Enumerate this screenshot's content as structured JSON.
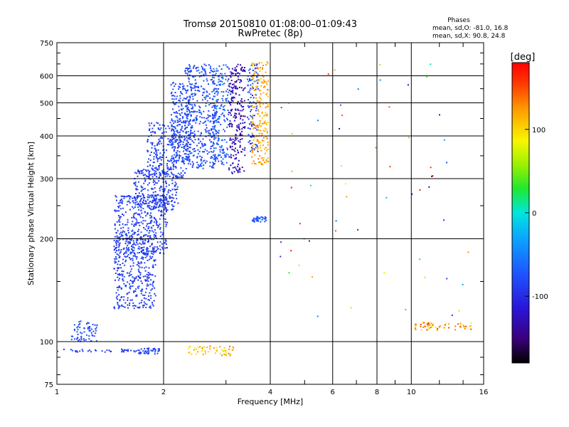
{
  "chart_data": {
    "type": "scatter",
    "title": "Tromsø 20150810 01:08:00–01:09:43",
    "subtitle": "RwPretec (8p)",
    "xlabel": "Frequency [MHz]",
    "ylabel": "Stationary phase Virtual Height [km]",
    "x_scale": "log",
    "y_scale": "log",
    "xlim": [
      1,
      16
    ],
    "ylim": [
      75,
      750
    ],
    "x_ticks": [
      "1",
      "2",
      "4",
      "6",
      "8",
      "10",
      "16"
    ],
    "y_ticks": [
      "75",
      "100",
      "200",
      "300",
      "400",
      "500",
      "600",
      "750"
    ],
    "grid": true,
    "stats": {
      "heading": "Phases",
      "line_o": "mean, sd,O:  -81.0, 16.8",
      "line_x": "mean, sd,X:  90.8, 24.8"
    },
    "colorbar": {
      "unit": "[deg]",
      "range": [
        -180,
        180
      ],
      "ticks": [
        "100",
        "0",
        "-100"
      ]
    },
    "clusters": [
      {
        "x": [
          1.0,
          1.7
        ],
        "y": [
          93,
          95
        ],
        "phase": [
          -95,
          -80
        ]
      },
      {
        "x": [
          1.1,
          1.3
        ],
        "y": [
          100,
          115
        ],
        "phase": [
          -90,
          -70
        ]
      },
      {
        "x": [
          1.7,
          1.95
        ],
        "y": [
          92,
          96
        ],
        "phase": [
          -95,
          -80
        ]
      },
      {
        "x": [
          2.35,
          3.15
        ],
        "y": [
          91,
          97
        ],
        "phase": [
          80,
          140
        ]
      },
      {
        "x": [
          1.45,
          1.9
        ],
        "y": [
          125,
          210
        ],
        "phase": [
          -100,
          -75
        ]
      },
      {
        "x": [
          1.45,
          2.05
        ],
        "y": [
          180,
          270
        ],
        "phase": [
          -100,
          -75
        ]
      },
      {
        "x": [
          1.65,
          2.2
        ],
        "y": [
          240,
          320
        ],
        "phase": [
          -100,
          -75
        ]
      },
      {
        "x": [
          1.8,
          2.3
        ],
        "y": [
          300,
          440
        ],
        "phase": [
          -100,
          -70
        ]
      },
      {
        "x": [
          2.1,
          2.4
        ],
        "y": [
          330,
          580
        ],
        "phase": [
          -95,
          -70
        ]
      },
      {
        "x": [
          2.3,
          2.8
        ],
        "y": [
          320,
          650
        ],
        "phase": [
          -95,
          -65
        ]
      },
      {
        "x": [
          2.75,
          3.05
        ],
        "y": [
          330,
          650
        ],
        "phase": [
          -90,
          -50
        ]
      },
      {
        "x": [
          3.05,
          3.4
        ],
        "y": [
          310,
          650
        ],
        "phase": [
          -150,
          -110
        ]
      },
      {
        "x": [
          3.45,
          3.7
        ],
        "y": [
          360,
          650
        ],
        "phase": [
          -110,
          -60
        ]
      },
      {
        "x": [
          3.55,
          3.95
        ],
        "y": [
          330,
          660
        ],
        "phase": [
          100,
          140
        ]
      },
      {
        "x": [
          3.55,
          3.9
        ],
        "y": [
          224,
          232
        ],
        "phase": [
          -80,
          -65
        ]
      },
      {
        "x": [
          10.2,
          14.8
        ],
        "y": [
          108,
          114
        ],
        "phase": [
          80,
          160
        ]
      },
      {
        "x": [
          4.2,
          14.5
        ],
        "y": [
          110,
          660
        ],
        "phase": [
          -150,
          180
        ],
        "sparse": true
      }
    ]
  }
}
